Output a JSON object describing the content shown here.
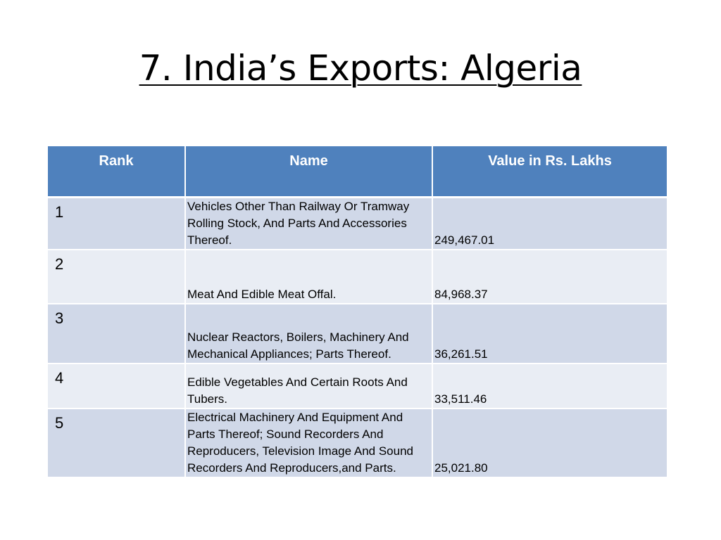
{
  "title": "7. India’s Exports: Algeria",
  "table": {
    "headers": [
      "Rank",
      "Name",
      "Value in Rs. Lakhs"
    ],
    "rows": [
      {
        "rank": "1",
        "name": "Vehicles Other Than Railway Or Tramway Rolling Stock, And Parts And Accessories Thereof.",
        "value": "249,467.01"
      },
      {
        "rank": "2",
        "name": "Meat And Edible Meat Offal.",
        "value": "84,968.37"
      },
      {
        "rank": "3",
        "name": "Nuclear Reactors, Boilers, Machinery And Mechanical Appliances; Parts Thereof.",
        "value": "36,261.51"
      },
      {
        "rank": "4",
        "name": "Edible Vegetables And Certain Roots And Tubers.",
        "value": "33,511.46"
      },
      {
        "rank": "5",
        "name": "Electrical Machinery And Equipment And Parts Thereof; Sound Recorders And Reproducers, Television Image And Sound Recorders And Reproducers,and Parts.",
        "value": "25,021.80"
      }
    ]
  }
}
